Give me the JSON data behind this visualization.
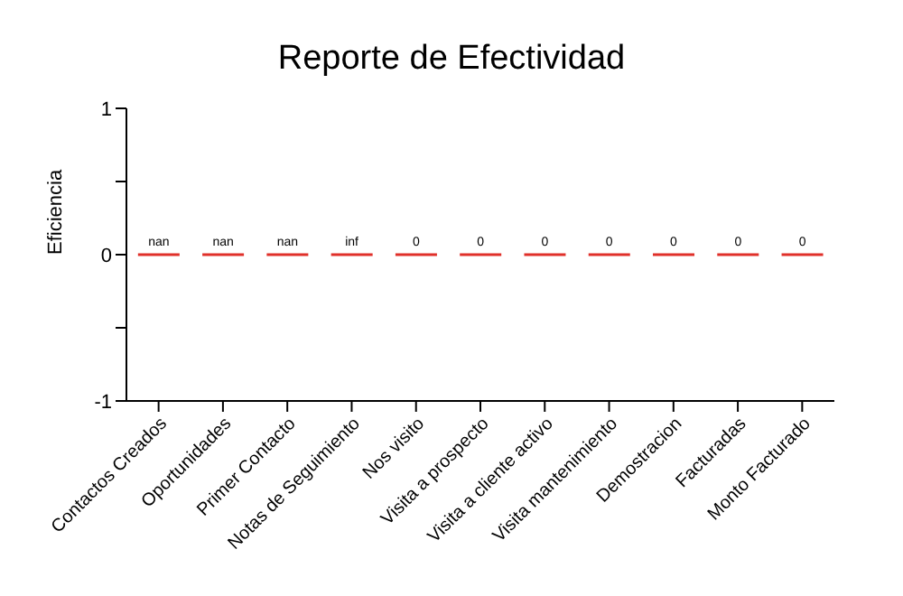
{
  "chart_data": {
    "type": "bar",
    "title": "Reporte de Efectividad",
    "ylabel": "Eficiencia",
    "categories": [
      "Contactos Creados",
      "Oportunidades",
      "Primer Contacto",
      "Notas de Seguimiento",
      "Nos visito",
      "Visita a prospecto",
      "Visita a cliente activo",
      "Visita mantenimiento",
      "Demostracion",
      "Facturadas",
      "Monto Facturado"
    ],
    "values": [
      0,
      0,
      0,
      0,
      0,
      0,
      0,
      0,
      0,
      0,
      0
    ],
    "value_labels": [
      "nan",
      "nan",
      "nan",
      "inf",
      "0",
      "0",
      "0",
      "0",
      "0",
      "0",
      "0"
    ],
    "color": "#e0302a",
    "ylim": [
      -1,
      1
    ],
    "yticks": [
      -1,
      {
        "value": -0.5,
        "label": null
      },
      0,
      {
        "value": 0.5,
        "label": null
      },
      1
    ]
  }
}
